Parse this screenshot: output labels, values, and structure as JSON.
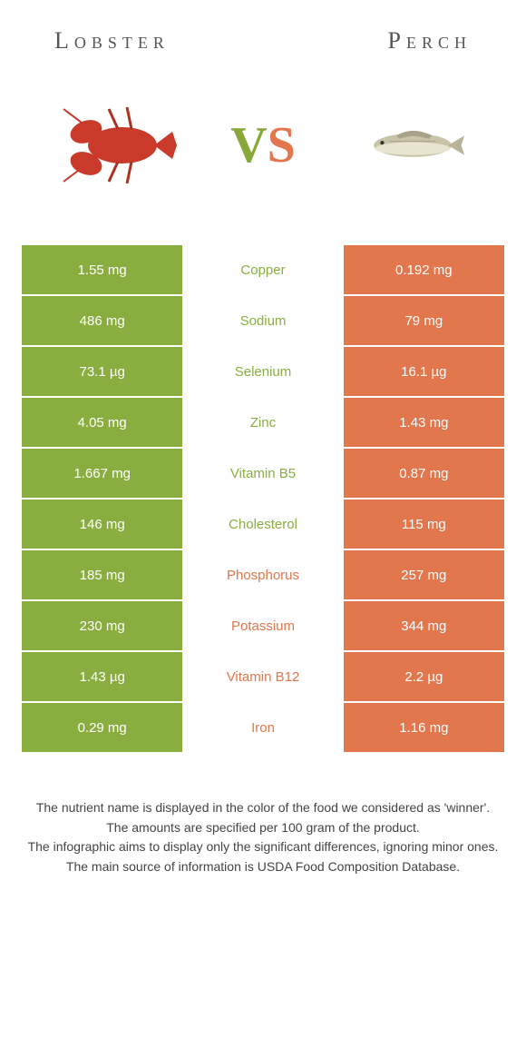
{
  "header": {
    "left_title": "Lobster",
    "right_title": "Perch",
    "vs_v": "V",
    "vs_s": "S"
  },
  "colors": {
    "left": "#8aad3f",
    "right": "#e2764d",
    "background": "#ffffff",
    "title_text": "#555555"
  },
  "table": {
    "rows": [
      {
        "left": "1.55 mg",
        "name": "Copper",
        "right": "0.192 mg",
        "winner": "left"
      },
      {
        "left": "486 mg",
        "name": "Sodium",
        "right": "79 mg",
        "winner": "left"
      },
      {
        "left": "73.1 µg",
        "name": "Selenium",
        "right": "16.1 µg",
        "winner": "left"
      },
      {
        "left": "4.05 mg",
        "name": "Zinc",
        "right": "1.43 mg",
        "winner": "left"
      },
      {
        "left": "1.667 mg",
        "name": "Vitamin B5",
        "right": "0.87 mg",
        "winner": "left"
      },
      {
        "left": "146 mg",
        "name": "Cholesterol",
        "right": "115 mg",
        "winner": "left"
      },
      {
        "left": "185 mg",
        "name": "Phosphorus",
        "right": "257 mg",
        "winner": "right"
      },
      {
        "left": "230 mg",
        "name": "Potassium",
        "right": "344 mg",
        "winner": "right"
      },
      {
        "left": "1.43 µg",
        "name": "Vitamin B12",
        "right": "2.2 µg",
        "winner": "right"
      },
      {
        "left": "0.29 mg",
        "name": "Iron",
        "right": "1.16 mg",
        "winner": "right"
      }
    ]
  },
  "footnotes": [
    "The nutrient name is displayed in the color of the food we considered as 'winner'.",
    "The amounts are specified per 100 gram of the product.",
    "The infographic aims to display only the significant differences, ignoring minor ones.",
    "The main source of information is USDA Food Composition Database."
  ]
}
